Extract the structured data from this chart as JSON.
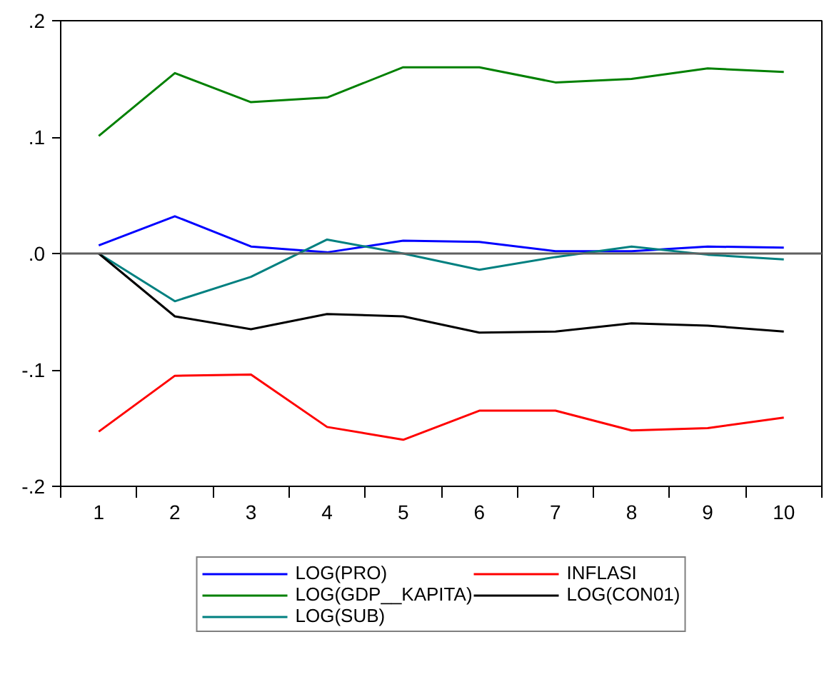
{
  "chart_data": {
    "type": "line",
    "categories": [
      "1",
      "2",
      "3",
      "4",
      "5",
      "6",
      "7",
      "8",
      "9",
      "10"
    ],
    "series": [
      {
        "name": "LOG(PRO)",
        "color": "#0000ff",
        "values": [
          0.007,
          0.032,
          0.006,
          0.001,
          0.011,
          0.01,
          0.002,
          0.002,
          0.006,
          0.005
        ]
      },
      {
        "name": "LOG(GDP__KAPITA)",
        "color": "#008000",
        "values": [
          0.101,
          0.155,
          0.13,
          0.134,
          0.16,
          0.16,
          0.147,
          0.15,
          0.159,
          0.156
        ]
      },
      {
        "name": "LOG(SUB)",
        "color": "#008080",
        "values": [
          0.0,
          -0.041,
          -0.02,
          0.012,
          0.0,
          -0.014,
          -0.003,
          0.006,
          -0.001,
          -0.005
        ]
      },
      {
        "name": "INFLASI",
        "color": "#ff0000",
        "values": [
          -0.153,
          -0.105,
          -0.104,
          -0.149,
          -0.16,
          -0.135,
          -0.135,
          -0.152,
          -0.15,
          -0.141
        ]
      },
      {
        "name": "LOG(CON01)",
        "color": "#000000",
        "values": [
          0.0,
          -0.054,
          -0.065,
          -0.052,
          -0.054,
          -0.068,
          -0.067,
          -0.06,
          -0.062,
          -0.067
        ]
      }
    ],
    "ylim": [
      -0.2,
      0.2
    ],
    "yticks": [
      {
        "value": -0.2,
        "label": "-.2"
      },
      {
        "value": -0.1,
        "label": "-.1"
      },
      {
        "value": 0,
        "label": ".0"
      },
      {
        "value": 0.1,
        "label": ".1"
      },
      {
        "value": 0.2,
        "label": ".2"
      }
    ],
    "ref_lines": [
      {
        "axis": "y",
        "value": 0,
        "color": "#606060"
      }
    ],
    "legend": "bottom",
    "marker": "none",
    "line_style": "solid"
  }
}
